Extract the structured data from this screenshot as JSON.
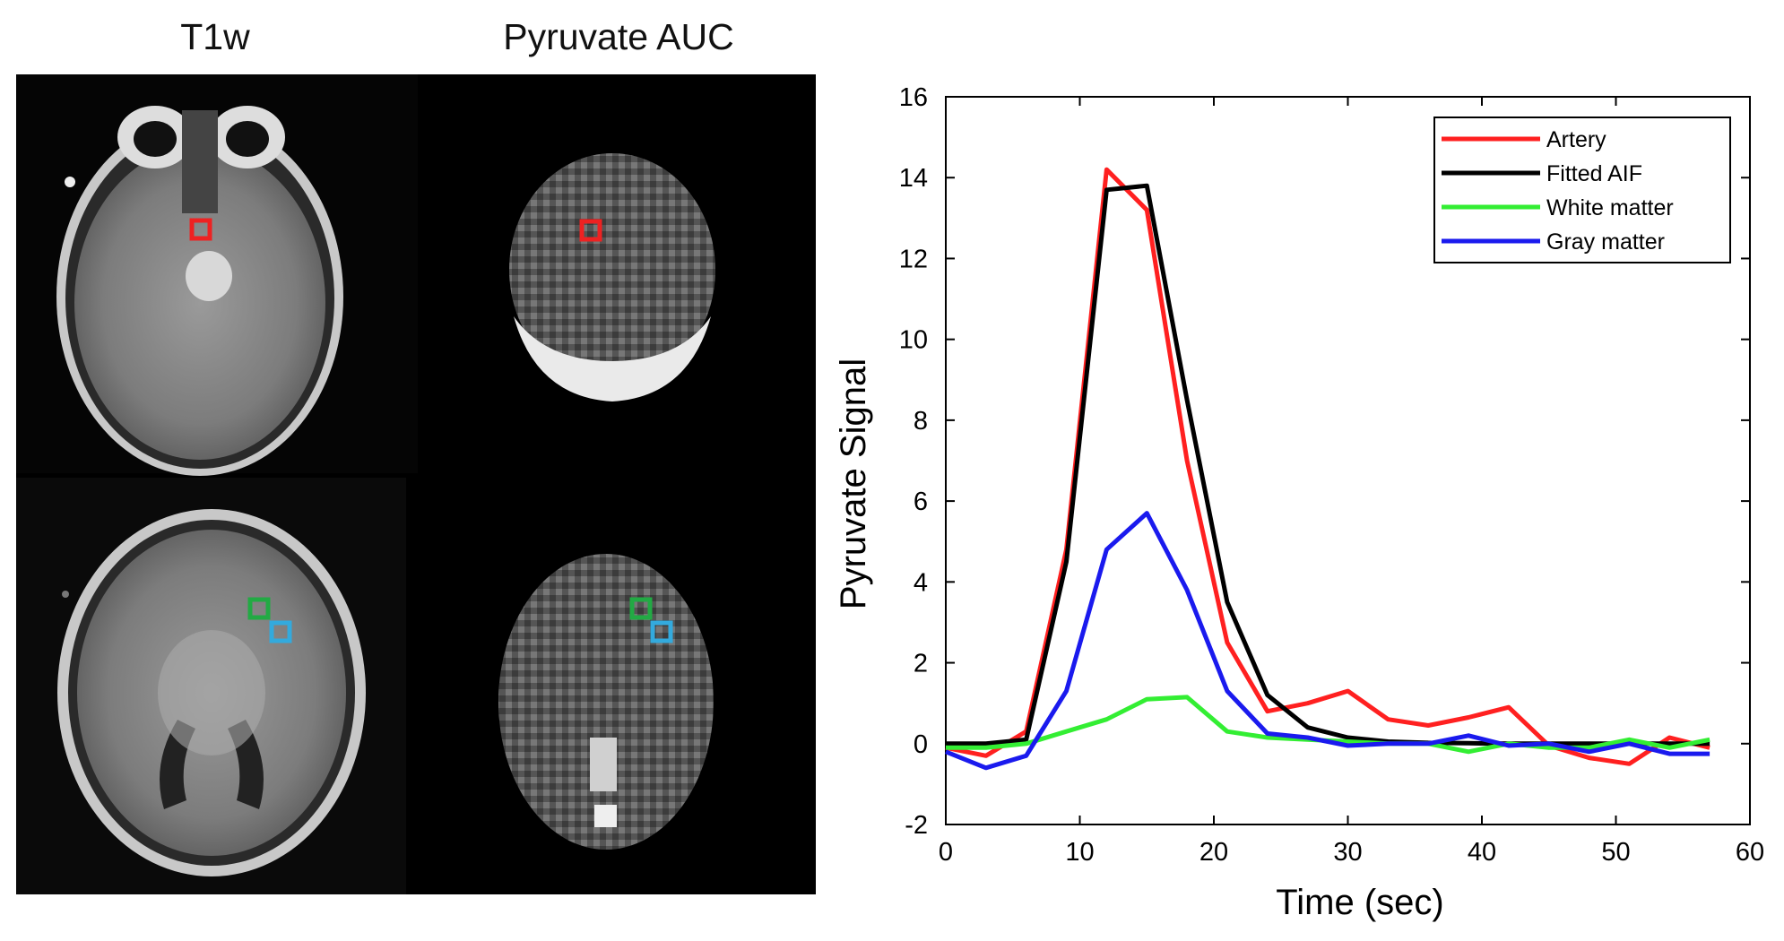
{
  "panels": {
    "col1_title": "T1w",
    "col2_title": "Pyruvate AUC",
    "roi_colors": {
      "artery": "#ee2222",
      "white_matter": "#22aa44",
      "gray_matter": "#33aadd"
    }
  },
  "chart_data": {
    "type": "line",
    "xlabel": "Time (sec)",
    "ylabel": "Pyruvate Signal",
    "xlim": [
      0,
      60
    ],
    "ylim": [
      -2,
      16
    ],
    "xticks": [
      0,
      10,
      20,
      30,
      40,
      50,
      60
    ],
    "yticks": [
      -2,
      0,
      2,
      4,
      6,
      8,
      10,
      12,
      14,
      16
    ],
    "grid": false,
    "legend_position": "top-right",
    "series": [
      {
        "name": "Artery",
        "color": "#ff2020",
        "x": [
          0,
          3,
          6,
          9,
          12,
          15,
          18,
          21,
          24,
          27,
          30,
          33,
          36,
          39,
          42,
          45,
          48,
          51,
          54,
          57
        ],
        "y": [
          -0.1,
          -0.3,
          0.3,
          4.8,
          14.2,
          13.2,
          7.0,
          2.5,
          0.8,
          1.0,
          1.3,
          0.6,
          0.45,
          0.65,
          0.9,
          -0.05,
          -0.35,
          -0.5,
          0.15,
          -0.1
        ]
      },
      {
        "name": "Fitted AIF",
        "color": "#000000",
        "x": [
          0,
          3,
          6,
          9,
          12,
          15,
          18,
          21,
          24,
          27,
          30,
          33,
          36,
          39,
          42,
          45,
          48,
          51,
          54,
          57
        ],
        "y": [
          0.0,
          0.0,
          0.1,
          4.5,
          13.7,
          13.8,
          8.5,
          3.5,
          1.2,
          0.4,
          0.15,
          0.05,
          0.02,
          0.01,
          0.0,
          0.0,
          0.0,
          0.0,
          0.0,
          0.0
        ]
      },
      {
        "name": "White matter",
        "color": "#33ee33",
        "x": [
          0,
          3,
          6,
          9,
          12,
          15,
          18,
          21,
          24,
          27,
          30,
          33,
          36,
          39,
          42,
          45,
          48,
          51,
          54,
          57
        ],
        "y": [
          -0.1,
          -0.1,
          0.0,
          0.3,
          0.6,
          1.1,
          1.15,
          0.3,
          0.15,
          0.1,
          0.05,
          0.0,
          0.0,
          -0.2,
          0.0,
          -0.1,
          -0.1,
          0.1,
          -0.1,
          0.1
        ]
      },
      {
        "name": "Gray matter",
        "color": "#1a1aee",
        "x": [
          0,
          3,
          6,
          9,
          12,
          15,
          18,
          21,
          24,
          27,
          30,
          33,
          36,
          39,
          42,
          45,
          48,
          51,
          54,
          57
        ],
        "y": [
          -0.2,
          -0.6,
          -0.3,
          1.3,
          4.8,
          5.7,
          3.8,
          1.3,
          0.25,
          0.15,
          -0.05,
          0.0,
          0.0,
          0.2,
          -0.05,
          0.0,
          -0.2,
          0.0,
          -0.25,
          -0.25
        ]
      }
    ]
  }
}
